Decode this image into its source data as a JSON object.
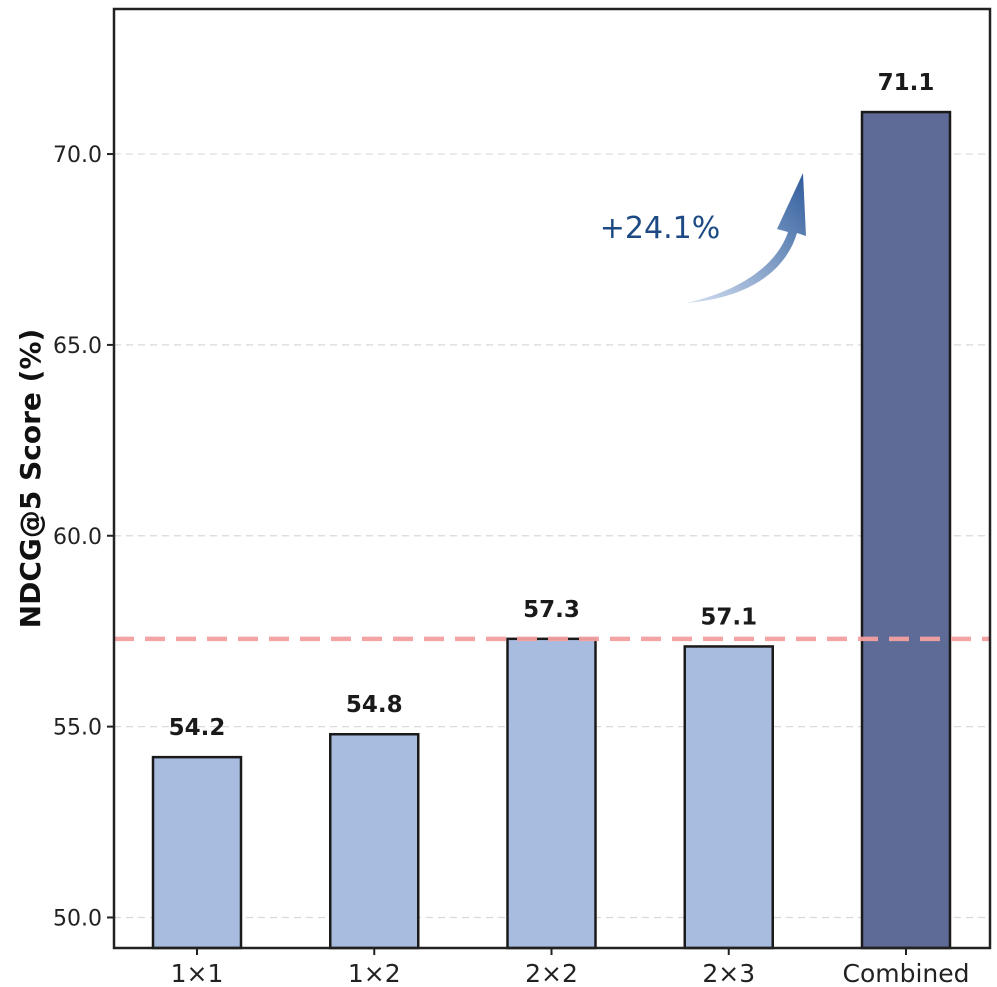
{
  "chart_data": {
    "type": "bar",
    "categories": [
      "1×1",
      "1×2",
      "2×2",
      "2×3",
      "Combined"
    ],
    "values": [
      54.2,
      54.8,
      57.3,
      57.1,
      71.1
    ],
    "value_labels": [
      "54.2",
      "54.8",
      "57.3",
      "57.1",
      "71.1"
    ],
    "ylabel": "NDCG@5 Score (%)",
    "xlabel": "",
    "ylim": [
      49.2,
      73.8
    ],
    "yticks": [
      50.0,
      55.0,
      60.0,
      65.0,
      70.0
    ],
    "ytick_labels": [
      "50.0",
      "55.0",
      "60.0",
      "65.0",
      "70.0"
    ],
    "reference_line": {
      "value": 57.3,
      "style": "dashed",
      "color": "#f4a0a0"
    },
    "annotation": {
      "text": "+24.1%",
      "arrow": "up-right",
      "color": "#1d4a85"
    },
    "bar_colors": [
      "#a8bcdf",
      "#a8bcdf",
      "#a8bcdf",
      "#a8bcdf",
      "#5d6b96"
    ],
    "grid": "horizontal dashed",
    "legend": "none"
  }
}
